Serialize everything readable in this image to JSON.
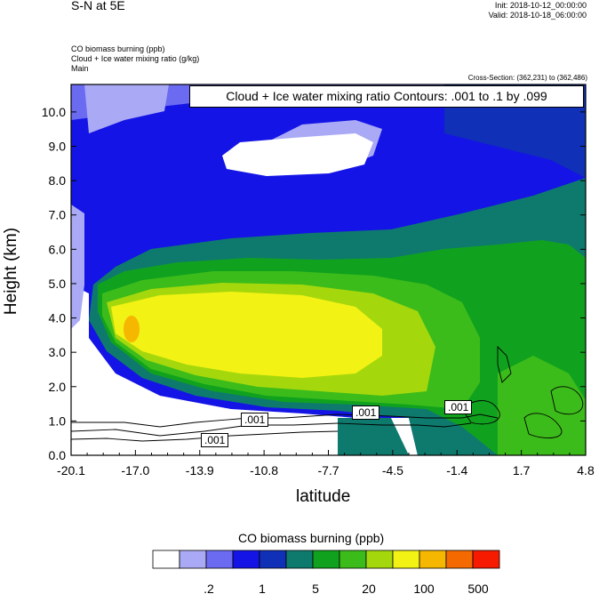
{
  "header": {
    "main_title": "S-N at 5E",
    "init_text": "Init: 2018-10-12_00:00:00",
    "valid_text": "Valid: 2018-10-18_06:00:00",
    "line1": "CO biomass burning   (ppb)",
    "line2": "Cloud + Ice water mixing ratio   (g/kg)",
    "line3": "Main",
    "cross_section": "Cross-Section: (362,231) to (362,486)"
  },
  "contour_label_box": "Cloud + Ice water mixing ratio Contours: .001 to .1 by .099",
  "colorbar": {
    "title": "CO biomass burning  (ppb)",
    "colors": [
      "#ffffff",
      "#a9a9f5",
      "#6b6bf2",
      "#1414e6",
      "#1030b8",
      "#0e7a6e",
      "#10a21e",
      "#3cbc1a",
      "#a4d80c",
      "#f2f214",
      "#f5b700",
      "#f56a00",
      "#f51a00"
    ],
    "labels": [
      ".2",
      "1",
      "5",
      "20",
      "100",
      "500"
    ]
  },
  "chart_data": {
    "type": "heatmap",
    "title": "",
    "xlabel": "latitude",
    "ylabel": "Height (km)",
    "x_ticks": [
      "-20.1",
      "-17.0",
      "-13.9",
      "-10.8",
      "-7.7",
      "-4.5",
      "-1.4",
      "1.7",
      "4.8"
    ],
    "y_ticks": [
      "0.0",
      "1.0",
      "2.0",
      "3.0",
      "4.0",
      "5.0",
      "6.0",
      "7.0",
      "8.0",
      "9.0",
      "10.0"
    ],
    "xlim": [
      -20.1,
      4.8
    ],
    "ylim": [
      0.0,
      10.8
    ],
    "contour_labels": [
      {
        "text": ".001",
        "lat": -11.3,
        "height": 1.05
      },
      {
        "text": ".001",
        "lat": -13.9,
        "height": 0.4
      },
      {
        "text": ".001",
        "lat": -5.0,
        "height": 1.2
      },
      {
        "text": ".001",
        "lat": -0.7,
        "height": 1.4
      }
    ]
  }
}
